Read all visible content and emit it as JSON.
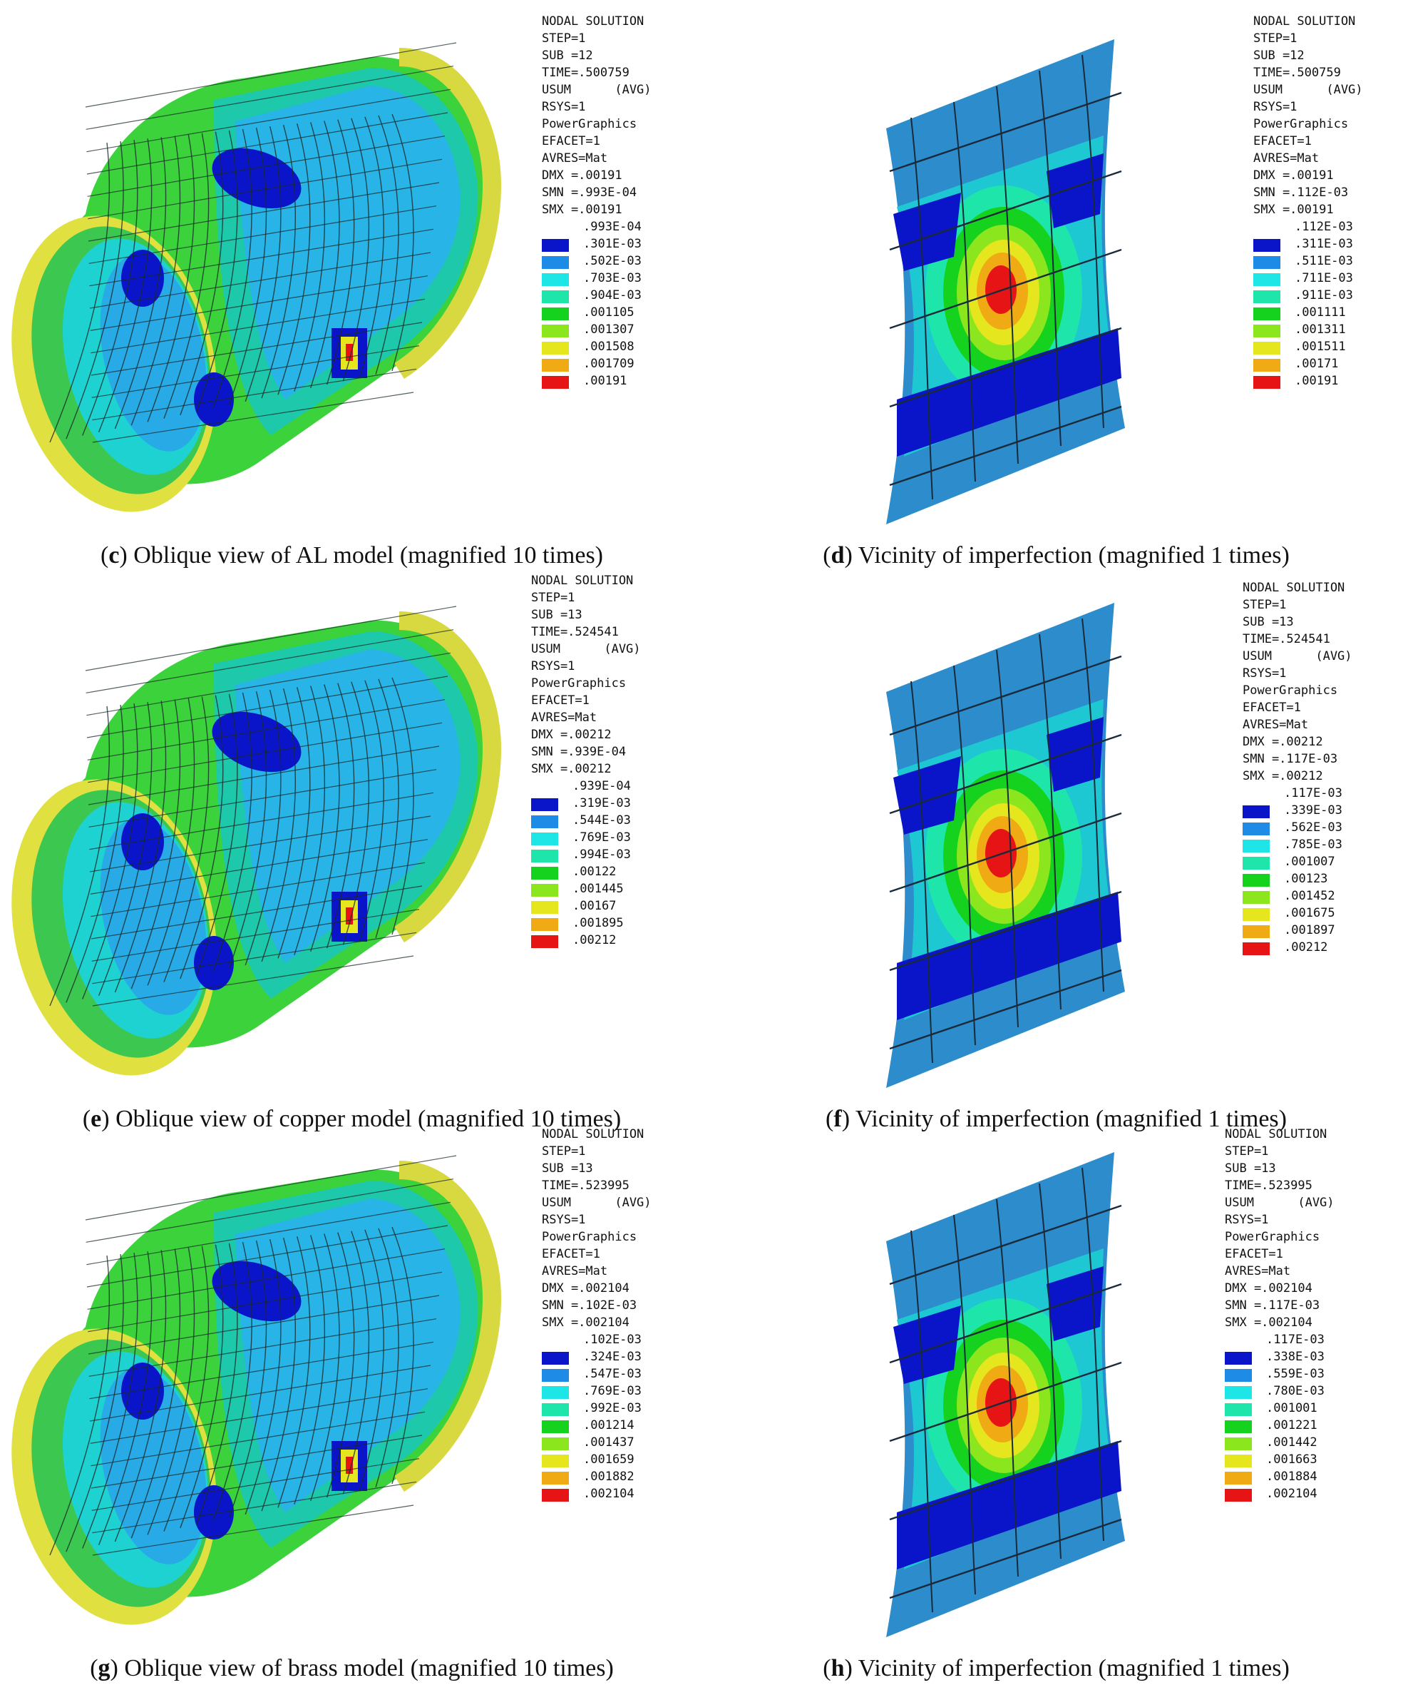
{
  "panels": [
    {
      "id": "c",
      "label": "c",
      "caption": "Oblique view of AL model (magnified 10 times)",
      "legend_header": [
        "NODAL SOLUTION",
        "STEP=1",
        "SUB =12",
        "TIME=.500759",
        "USUM      (AVG)",
        "RSYS=1",
        "PowerGraphics",
        "EFACET=1",
        "AVRES=Mat",
        "DMX =.00191",
        "SMN =.993E-04",
        "SMX =.00191"
      ],
      "legend_values": [
        ".993E-04",
        ".301E-03",
        ".502E-03",
        ".703E-03",
        ".904E-03",
        ".001105",
        ".001307",
        ".001508",
        ".001709",
        ".00191"
      ]
    },
    {
      "id": "d",
      "label": "d",
      "caption": "Vicinity of imperfection (magnified 1 times)",
      "legend_header": [
        "NODAL SOLUTION",
        "STEP=1",
        "SUB =12",
        "TIME=.500759",
        "USUM      (AVG)",
        "RSYS=1",
        "PowerGraphics",
        "EFACET=1",
        "AVRES=Mat",
        "DMX =.00191",
        "SMN =.112E-03",
        "SMX =.00191"
      ],
      "legend_values": [
        ".112E-03",
        ".311E-03",
        ".511E-03",
        ".711E-03",
        ".911E-03",
        ".001111",
        ".001311",
        ".001511",
        ".00171",
        ".00191"
      ]
    },
    {
      "id": "e",
      "label": "e",
      "caption": "Oblique view of copper model (magnified 10 times)",
      "legend_header": [
        "NODAL SOLUTION",
        "STEP=1",
        "SUB =13",
        "TIME=.524541",
        "USUM      (AVG)",
        "RSYS=1",
        "PowerGraphics",
        "EFACET=1",
        "AVRES=Mat",
        "DMX =.00212",
        "SMN =.939E-04",
        "SMX =.00212"
      ],
      "legend_values": [
        ".939E-04",
        ".319E-03",
        ".544E-03",
        ".769E-03",
        ".994E-03",
        ".00122",
        ".001445",
        ".00167",
        ".001895",
        ".00212"
      ]
    },
    {
      "id": "f",
      "label": "f",
      "caption": "Vicinity of imperfection (magnified 1 times)",
      "legend_header": [
        "NODAL SOLUTION",
        "STEP=1",
        "SUB =13",
        "TIME=.524541",
        "USUM      (AVG)",
        "RSYS=1",
        "PowerGraphics",
        "EFACET=1",
        "AVRES=Mat",
        "DMX =.00212",
        "SMN =.117E-03",
        "SMX =.00212"
      ],
      "legend_values": [
        ".117E-03",
        ".339E-03",
        ".562E-03",
        ".785E-03",
        ".001007",
        ".00123",
        ".001452",
        ".001675",
        ".001897",
        ".00212"
      ]
    },
    {
      "id": "g",
      "label": "g",
      "caption": "Oblique view of brass model (magnified 10 times)",
      "legend_header": [
        "NODAL SOLUTION",
        "STEP=1",
        "SUB =13",
        "TIME=.523995",
        "USUM      (AVG)",
        "RSYS=1",
        "PowerGraphics",
        "EFACET=1",
        "AVRES=Mat",
        "DMX =.002104",
        "SMN =.102E-03",
        "SMX =.002104"
      ],
      "legend_values": [
        ".102E-03",
        ".324E-03",
        ".547E-03",
        ".769E-03",
        ".992E-03",
        ".001214",
        ".001437",
        ".001659",
        ".001882",
        ".002104"
      ]
    },
    {
      "id": "h",
      "label": "h",
      "caption": "Vicinity of imperfection (magnified 1 times)",
      "legend_header": [
        "NODAL SOLUTION",
        "STEP=1",
        "SUB =13",
        "TIME=.523995",
        "USUM      (AVG)",
        "RSYS=1",
        "PowerGraphics",
        "EFACET=1",
        "AVRES=Mat",
        "DMX =.002104",
        "SMN =.117E-03",
        "SMX =.002104"
      ],
      "legend_values": [
        ".117E-03",
        ".338E-03",
        ".559E-03",
        ".780E-03",
        ".001001",
        ".001221",
        ".001442",
        ".001663",
        ".001884",
        ".002104"
      ]
    }
  ],
  "colors": {
    "contour_scale": [
      "#0a14c8",
      "#1e8ce6",
      "#1ee6e6",
      "#1ee6aa",
      "#14d21e",
      "#8ce61e",
      "#e6e61e",
      "#f0aa14",
      "#e61414"
    ]
  }
}
